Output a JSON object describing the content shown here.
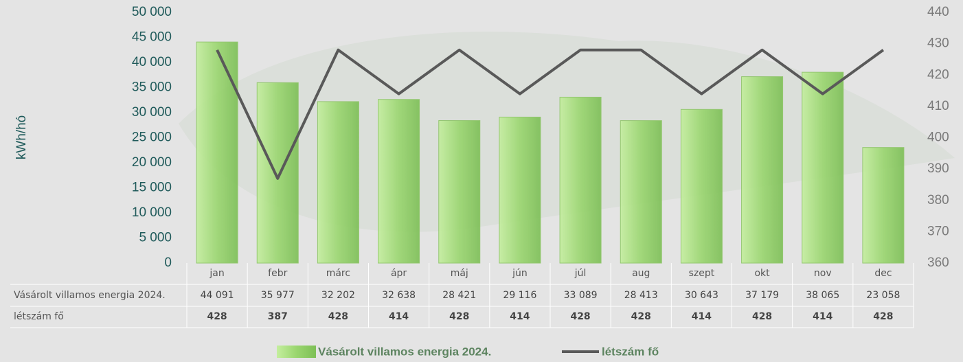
{
  "chart_data": {
    "type": "bar-line",
    "y_label": "kWh/hó",
    "categories": [
      "jan",
      "febr",
      "márc",
      "ápr",
      "máj",
      "jún",
      "júl",
      "aug",
      "szept",
      "okt",
      "nov",
      "dec"
    ],
    "series": [
      {
        "name": "Vásárolt villamos energia 2024.",
        "color": "#9ad66f",
        "type": "bar",
        "values": [
          44091,
          35977,
          32202,
          32638,
          28421,
          29116,
          33089,
          28413,
          30643,
          37179,
          38065,
          23058
        ],
        "value_labels": [
          "44 091",
          "35 977",
          "32 202",
          "32 638",
          "28 421",
          "29 116",
          "33 089",
          "28 413",
          "30 643",
          "37 179",
          "38 065",
          "23 058"
        ]
      },
      {
        "name": "létszám fő",
        "color": "#595959",
        "type": "line",
        "axis": "y2",
        "values": [
          428,
          387,
          428,
          414,
          428,
          414,
          428,
          428,
          414,
          428,
          414,
          428
        ]
      }
    ],
    "ylim": [
      0,
      50000
    ],
    "yticks": [
      0,
      {
        "value": 5000,
        "label": "5 000"
      },
      {
        "value": 10000,
        "label": "10 000"
      },
      {
        "value": 15000,
        "label": "15 000"
      },
      {
        "value": 20000,
        "label": "20 000"
      },
      {
        "value": 25000,
        "label": "25 000"
      },
      {
        "value": 30000,
        "label": "30 000"
      },
      {
        "value": 35000,
        "label": "35 000"
      },
      {
        "value": 40000,
        "label": "40 000"
      },
      {
        "value": 45000,
        "label": "45 000"
      },
      {
        "value": 50000,
        "label": "50 000"
      }
    ],
    "y2lim": [
      360,
      440
    ],
    "y2ticks": [
      360,
      370,
      380,
      390,
      400,
      410,
      420,
      430,
      440
    ],
    "legend": "bottom"
  }
}
